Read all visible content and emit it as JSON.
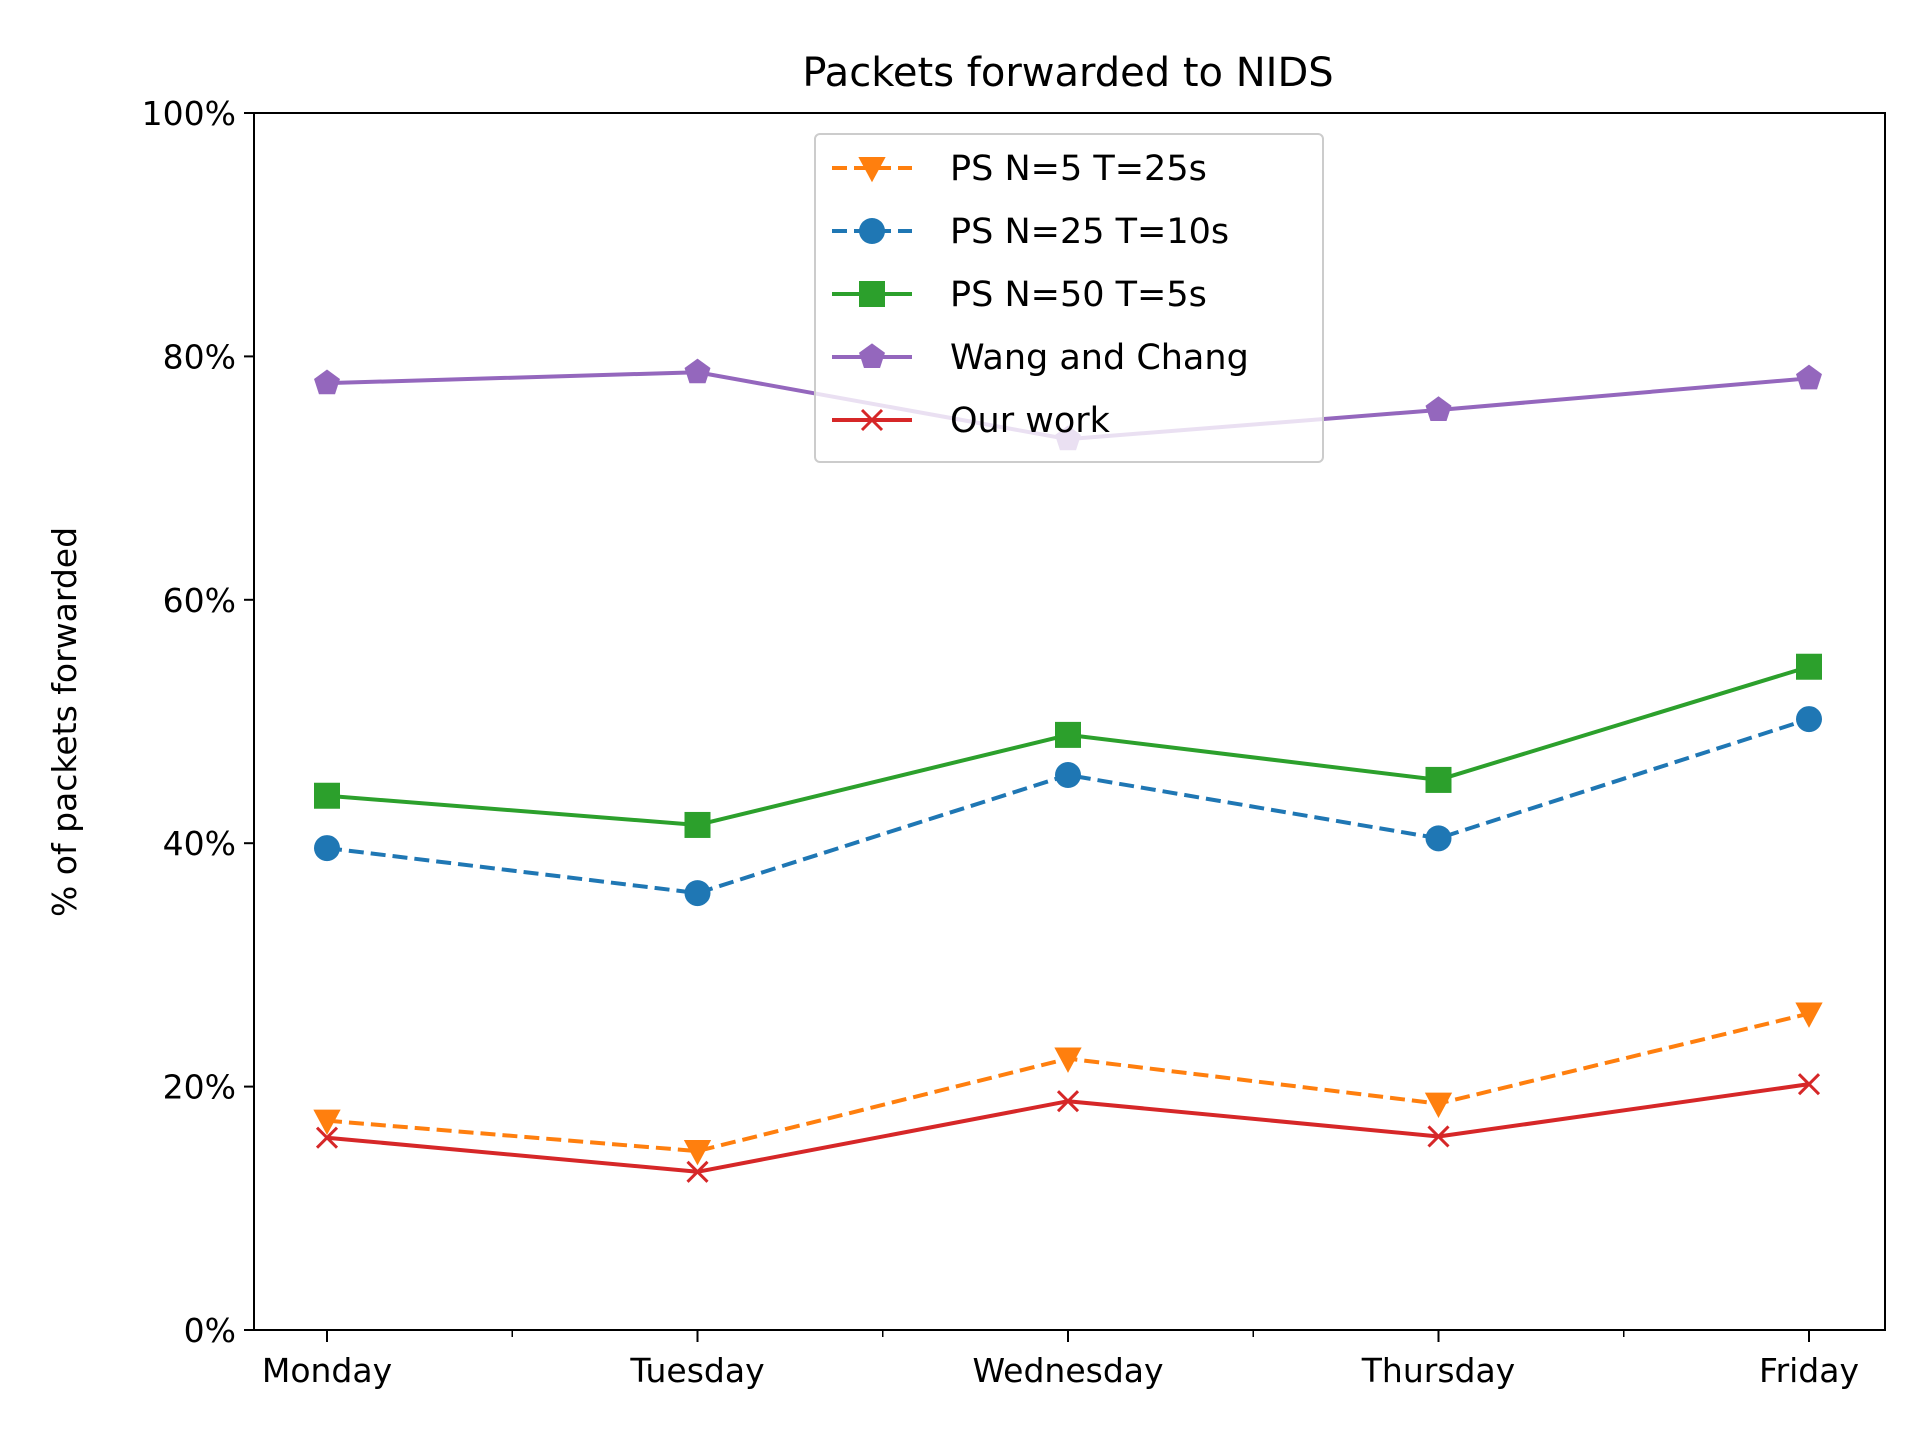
{
  "chart_data": {
    "type": "line",
    "title": "Packets forwarded to NIDS",
    "xlabel": "",
    "ylabel": "% of packets forwarded",
    "categories": [
      "Monday",
      "Tuesday",
      "Wednesday",
      "Thursday",
      "Friday"
    ],
    "ylim": [
      0,
      100
    ],
    "yticks": [
      0,
      20,
      40,
      60,
      80,
      100
    ],
    "ytick_labels": [
      "0%",
      "20%",
      "40%",
      "60%",
      "80%",
      "100%"
    ],
    "grid": false,
    "legend_position": "top-center",
    "series": [
      {
        "name": "PS N=5 T=25s",
        "values": [
          17.2,
          14.7,
          22.3,
          18.6,
          26.0
        ],
        "color": "#ff7f0e",
        "linestyle": "dashed",
        "marker": "triangle-down"
      },
      {
        "name": "PS N=25 T=10s",
        "values": [
          39.6,
          35.9,
          45.6,
          40.4,
          50.2
        ],
        "color": "#1f77b4",
        "linestyle": "dashed",
        "marker": "circle"
      },
      {
        "name": "PS N=50 T=5s",
        "values": [
          43.9,
          41.5,
          48.9,
          45.2,
          54.5
        ],
        "color": "#2ca02c",
        "linestyle": "solid",
        "marker": "square"
      },
      {
        "name": "Wang and Chang",
        "values": [
          77.8,
          78.7,
          73.2,
          75.6,
          78.2
        ],
        "color": "#9467bd",
        "linestyle": "solid",
        "marker": "pentagon"
      },
      {
        "name": "Our work",
        "values": [
          15.8,
          13.0,
          18.8,
          15.9,
          20.2
        ],
        "color": "#d62728",
        "linestyle": "solid",
        "marker": "x"
      }
    ]
  }
}
